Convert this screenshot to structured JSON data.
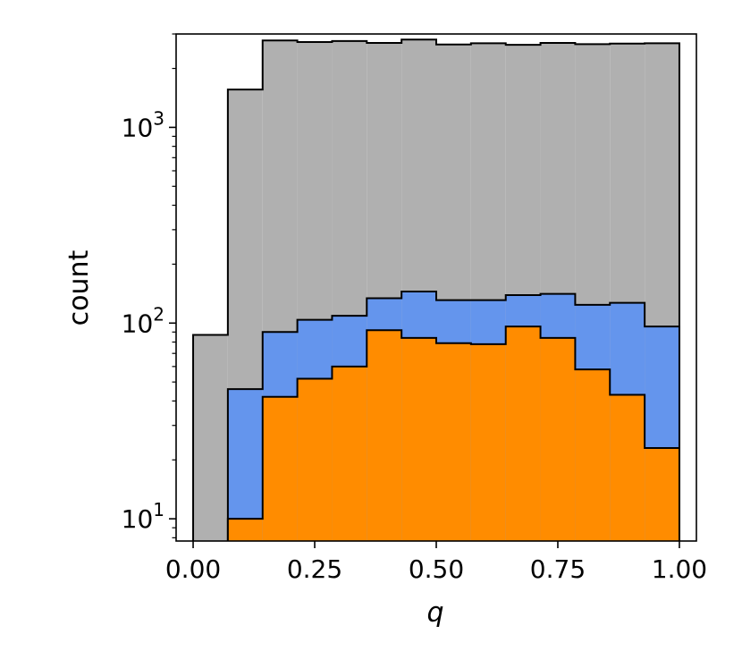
{
  "chart_data": {
    "type": "histogram",
    "title": "",
    "xlabel": "q",
    "ylabel": "count",
    "yscale": "log",
    "xlim": [
      -0.035,
      1.035
    ],
    "ylim": [
      7.7,
      3000
    ],
    "grid": false,
    "legend": "none",
    "bin_edges": [
      0.0,
      0.0714,
      0.1429,
      0.2143,
      0.2857,
      0.3571,
      0.4286,
      0.5,
      0.5714,
      0.6429,
      0.7143,
      0.7857,
      0.8571,
      0.9286,
      1.0
    ],
    "series": [
      {
        "color": "#b0b0b0",
        "values": [
          87,
          1560,
          2780,
          2730,
          2760,
          2700,
          2810,
          2650,
          2690,
          2640,
          2700,
          2660,
          2680,
          2690
        ]
      },
      {
        "color": "#6495ed",
        "values": [
          null,
          46,
          90,
          104,
          109,
          134,
          145,
          131,
          131,
          139,
          141,
          124,
          127,
          96
        ]
      },
      {
        "color": "#ff8c00",
        "values": [
          null,
          10,
          42,
          52,
          60,
          92,
          84,
          79,
          78,
          96,
          84,
          58,
          43,
          23
        ]
      }
    ],
    "x_ticks": [
      {
        "value": 0.0,
        "label": "0.00"
      },
      {
        "value": 0.25,
        "label": "0.25"
      },
      {
        "value": 0.5,
        "label": "0.50"
      },
      {
        "value": 0.75,
        "label": "0.75"
      },
      {
        "value": 1.0,
        "label": "1.00"
      }
    ],
    "y_ticks": [
      {
        "value": 10,
        "base": "10",
        "exp": "1"
      },
      {
        "value": 100,
        "base": "10",
        "exp": "2"
      },
      {
        "value": 1000,
        "base": "10",
        "exp": "3"
      }
    ]
  }
}
